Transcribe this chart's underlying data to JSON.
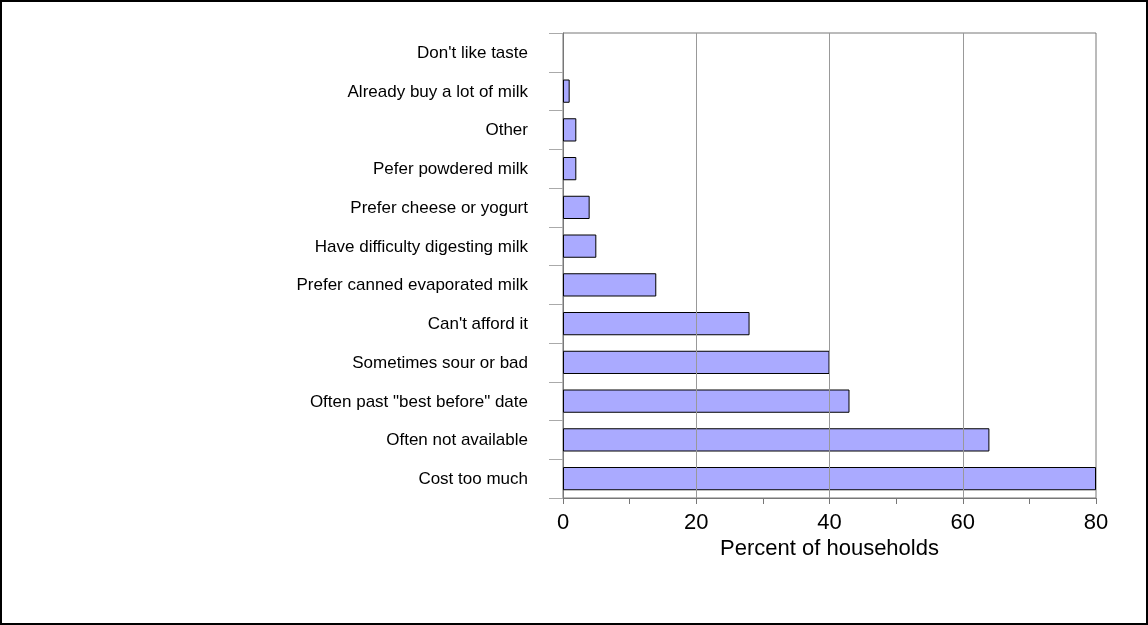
{
  "chart_data": {
    "type": "bar",
    "orientation": "horizontal",
    "categories": [
      "Don't like taste",
      "Already buy a lot of milk",
      "Other",
      "Pefer powdered milk",
      "Prefer cheese or yogurt",
      "Have difficulty digesting milk",
      "Prefer canned evaporated milk",
      "Can't afford it",
      "Sometimes sour or bad",
      "Often past \"best before\" date",
      "Often not available",
      "Cost too much"
    ],
    "values": [
      0,
      1,
      2,
      2,
      4,
      5,
      14,
      28,
      40,
      43,
      64,
      80
    ],
    "color": "#aaaaff",
    "xlabel": "Percent of households",
    "xlim": [
      0,
      80
    ],
    "xticks": [
      0,
      {
        "value": 10,
        "label": null
      },
      20,
      {
        "value": 30,
        "label": null
      },
      40,
      {
        "value": 50,
        "label": null
      },
      60,
      {
        "value": 70,
        "label": null
      },
      80
    ],
    "grid": "x"
  }
}
